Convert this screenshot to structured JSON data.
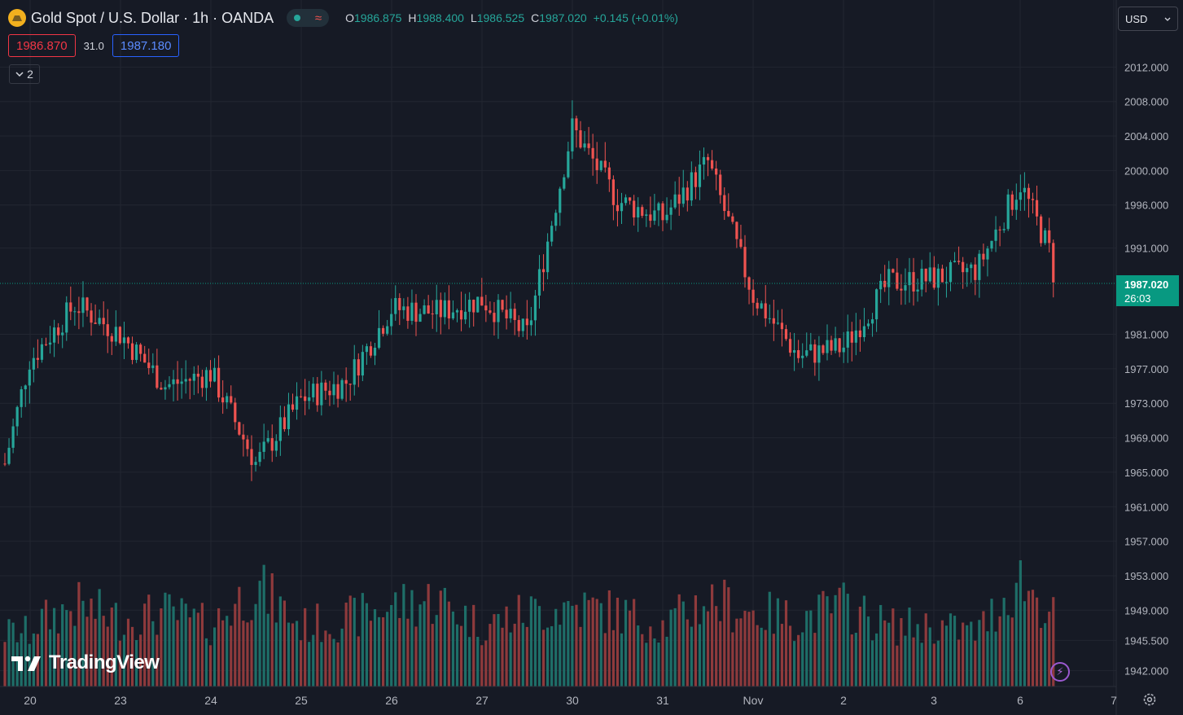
{
  "header": {
    "symbol_title": "Gold Spot / U.S. Dollar · 1h · OANDA",
    "ohlc": [
      {
        "key": "O",
        "value": "1986.875"
      },
      {
        "key": "H",
        "value": "1988.400"
      },
      {
        "key": "L",
        "value": "1986.525"
      },
      {
        "key": "C",
        "value": "1987.020"
      }
    ],
    "change": "+0.145 (+0.01%)",
    "sell_price": "1986.870",
    "spread": "31.0",
    "buy_price": "1987.180",
    "collapse_count": "2"
  },
  "currency_select": "USD",
  "last_price": {
    "value": "1987.020",
    "countdown": "26:03"
  },
  "logo_text": "TradingView",
  "colors": {
    "background": "#161a25",
    "up": "#26a69a",
    "down": "#ef5350",
    "volume_up": "#1e6e68",
    "volume_down": "#8e3a3c",
    "grid": "#222631",
    "last_price": "#089981"
  },
  "chart_data": {
    "type": "candlestick",
    "timeframe": "1h",
    "x_tick_labels": [
      "20",
      "23",
      "24",
      "25",
      "26",
      "27",
      "30",
      "31",
      "Nov",
      "2",
      "3",
      "6",
      "7"
    ],
    "y_tick_labels": [
      "2012.000",
      "2008.000",
      "2004.000",
      "2000.000",
      "1996.000",
      "1991.000",
      "1981.000",
      "1977.000",
      "1973.000",
      "1969.000",
      "1965.000",
      "1961.000",
      "1957.000",
      "1953.000",
      "1949.000",
      "1945.500",
      "1942.000"
    ],
    "yrange": [
      1941,
      2016
    ],
    "grid": true,
    "volume_pane": true,
    "last_close": 1987.02,
    "day_anchors": [
      {
        "label": "20",
        "close": 1978.0,
        "vol": 0.45
      },
      {
        "label": "",
        "close": 1984.5,
        "vol": 0.6
      },
      {
        "label": "23",
        "close": 1981.0,
        "vol": 0.5
      },
      {
        "label": "",
        "close": 1975.0,
        "vol": 0.55
      },
      {
        "label": "24",
        "close": 1976.5,
        "vol": 0.45
      },
      {
        "label": "",
        "close": 1966.0,
        "vol": 0.75
      },
      {
        "label": "25",
        "close": 1973.5,
        "vol": 0.45
      },
      {
        "label": "",
        "close": 1975.5,
        "vol": 0.5
      },
      {
        "label": "26",
        "close": 1984.0,
        "vol": 0.6
      },
      {
        "label": "",
        "close": 1983.5,
        "vol": 0.65
      },
      {
        "label": "27",
        "close": 1985.0,
        "vol": 0.45
      },
      {
        "label": "",
        "close": 1981.0,
        "vol": 0.55
      },
      {
        "label": "30",
        "close": 2005.0,
        "vol": 0.6
      },
      {
        "label": "",
        "close": 1996.5,
        "vol": 0.55
      },
      {
        "label": "31",
        "close": 1994.5,
        "vol": 0.45
      },
      {
        "label": "",
        "close": 2001.0,
        "vol": 0.65
      },
      {
        "label": "Nov",
        "close": 1985.5,
        "vol": 0.55
      },
      {
        "label": "",
        "close": 1978.5,
        "vol": 0.5
      },
      {
        "label": "2",
        "close": 1979.5,
        "vol": 0.6
      },
      {
        "label": "",
        "close": 1987.0,
        "vol": 0.45
      },
      {
        "label": "3",
        "close": 1987.5,
        "vol": 0.45
      },
      {
        "label": "",
        "close": 1988.5,
        "vol": 0.4
      },
      {
        "label": "6",
        "close": 1998.5,
        "vol": 0.8
      },
      {
        "label": "",
        "close": 1986.0,
        "vol": 0.4
      },
      {
        "label": "7",
        "close": 1987.02,
        "vol": 0.3
      }
    ]
  }
}
